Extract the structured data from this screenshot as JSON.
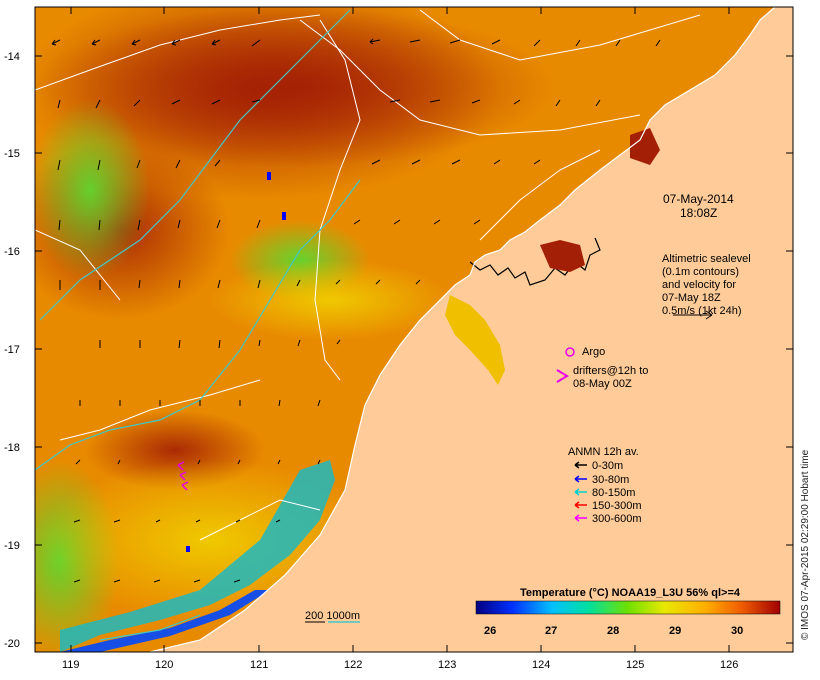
{
  "map": {
    "lat_ticks": [
      "-14",
      "-15",
      "-16",
      "-17",
      "-18",
      "-19",
      "-20"
    ],
    "lon_ticks": [
      "119",
      "120",
      "121",
      "122",
      "123",
      "124",
      "125",
      "126"
    ]
  },
  "timestamp": {
    "date": "07-May-2014",
    "time": "18:08Z"
  },
  "altimetry_note": [
    "Altimetric sealevel",
    "(0.1m contours)",
    "and velocity for",
    "07-May 18Z",
    "0.5m/s (1kt 24h)"
  ],
  "argo": {
    "label": "Argo",
    "color": "#e800e8"
  },
  "drifters": {
    "line1": "drifters@12h to",
    "line2": "08-May 00Z",
    "color": "#e800e8"
  },
  "anmn_legend": {
    "title": "ANMN 12h av.",
    "items": [
      {
        "label": "0-30m",
        "color": "#000000"
      },
      {
        "label": "30-80m",
        "color": "#0000ff"
      },
      {
        "label": "80-150m",
        "color": "#00d0d0"
      },
      {
        "label": "150-300m",
        "color": "#ff0000"
      },
      {
        "label": "300-600m",
        "color": "#ff00ff"
      }
    ]
  },
  "bathymetry_legend": {
    "label": "200 1000m"
  },
  "colorbar": {
    "title": "Temperature (°C) NOAA19_L3U 56% ql>=4",
    "ticks": [
      "26",
      "27",
      "28",
      "29",
      "30"
    ]
  },
  "credit": "© IMOS 07-Apr-2015 02:29:00 Hobart time",
  "colors": {
    "land": "#ffcc99",
    "warm_sea": "#a31f05",
    "mid_sea": "#e88a00",
    "cool_sea": "#5fd62f",
    "coldest_sea": "#0047ff",
    "contour": "#ffffff",
    "isobath": "#40c8c8"
  }
}
